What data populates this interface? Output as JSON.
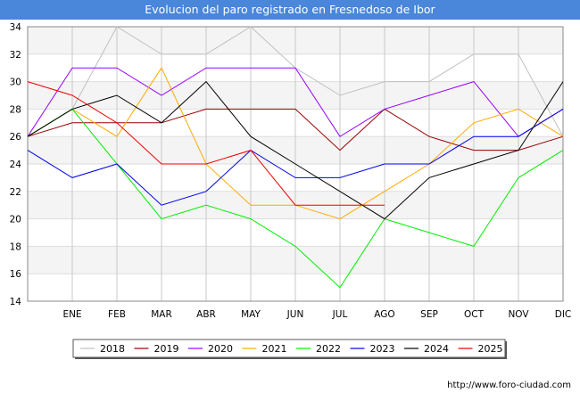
{
  "chart_data": {
    "type": "line",
    "title": "Evolucion del paro registrado en Fresnedoso de Ibor",
    "xlabel": "",
    "ylabel": "",
    "categories": [
      "",
      "ENE",
      "FEB",
      "MAR",
      "ABR",
      "MAY",
      "JUN",
      "JUL",
      "AGO",
      "SEP",
      "OCT",
      "NOV",
      "DIC"
    ],
    "ylim": [
      14,
      34
    ],
    "yticks": [
      14,
      16,
      18,
      20,
      22,
      24,
      26,
      28,
      30,
      32,
      34
    ],
    "grid": true,
    "legend_position": "bottom",
    "series": [
      {
        "name": "2018",
        "color": "#c0c0c0",
        "values": [
          26,
          28,
          34,
          32,
          32,
          34,
          31,
          29,
          30,
          30,
          32,
          32,
          26
        ]
      },
      {
        "name": "2019",
        "color": "#990000",
        "values": [
          26,
          27,
          27,
          27,
          28,
          28,
          28,
          25,
          28,
          26,
          25,
          25,
          26
        ]
      },
      {
        "name": "2020",
        "color": "#9900ff",
        "values": [
          26,
          31,
          31,
          29,
          31,
          31,
          31,
          26,
          28,
          29,
          30,
          26,
          28
        ]
      },
      {
        "name": "2021",
        "color": "#ffaa00",
        "values": [
          26,
          28,
          26,
          31,
          24,
          21,
          21,
          20,
          22,
          24,
          27,
          28,
          26
        ]
      },
      {
        "name": "2022",
        "color": "#00ee00",
        "values": [
          26,
          28,
          24,
          20,
          21,
          20,
          18,
          15,
          20,
          19,
          18,
          23,
          25
        ]
      },
      {
        "name": "2023",
        "color": "#0000ee",
        "values": [
          25,
          23,
          24,
          21,
          22,
          25,
          23,
          23,
          24,
          24,
          26,
          26,
          28
        ]
      },
      {
        "name": "2024",
        "color": "#000000",
        "values": [
          26,
          28,
          29,
          27,
          30,
          26,
          24,
          22,
          20,
          23,
          24,
          25,
          30
        ]
      },
      {
        "name": "2025",
        "color": "#ee0000",
        "values": [
          30,
          29,
          27,
          24,
          24,
          25,
          21,
          21,
          21,
          null,
          null,
          null,
          null
        ]
      }
    ]
  },
  "footer": {
    "credit": "http://www.foro-ciudad.com"
  }
}
